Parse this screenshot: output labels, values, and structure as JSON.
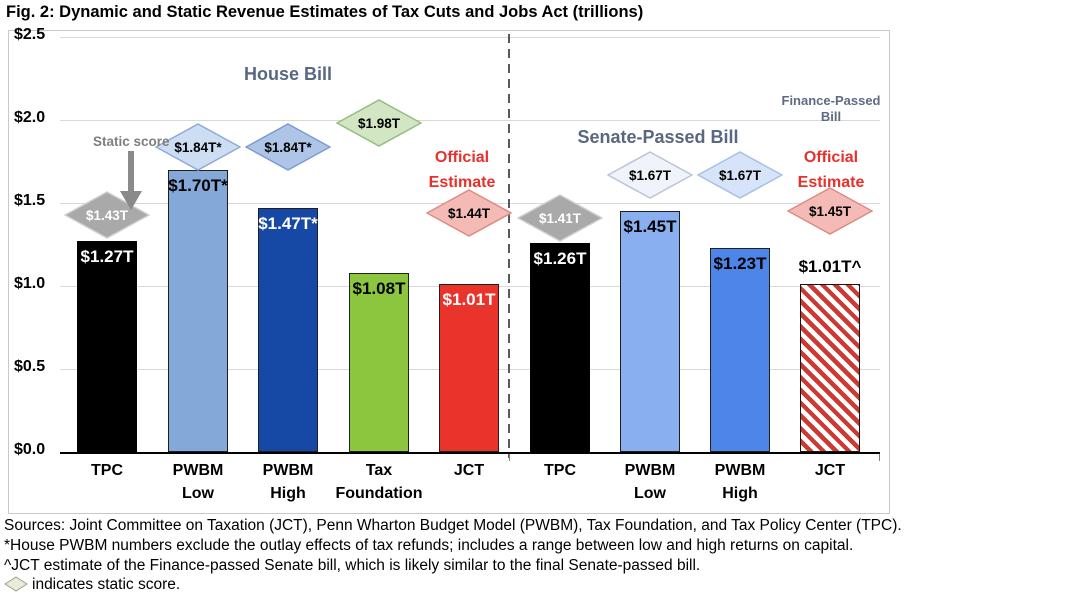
{
  "title": "Fig. 2: Dynamic and Static Revenue Estimates of Tax Cuts and Jobs Act (trillions)",
  "chart_data": {
    "type": "bar",
    "unit": "trillions of dollars",
    "ylim": [
      0,
      2.5
    ],
    "yticks": [
      {
        "value": 2.5,
        "label": "$2.5"
      },
      {
        "value": 2.0,
        "label": "$2.0"
      },
      {
        "value": 1.5,
        "label": "$1.5"
      },
      {
        "value": 1.0,
        "label": "$1.0"
      },
      {
        "value": 0.5,
        "label": "$0.5"
      },
      {
        "value": 0.0,
        "label": "$0.0"
      }
    ],
    "groups": [
      "House Bill",
      "Senate-Passed Bill"
    ],
    "bars": [
      {
        "id": "tpc-house",
        "group": "House Bill",
        "category": [
          "TPC"
        ],
        "value": 1.27,
        "label": "$1.27T",
        "fill": "#000000",
        "label_color": "#ffffff",
        "label_above": false,
        "static": {
          "value": 1.43,
          "label": "$1.43T",
          "fill": "#a9a9a9",
          "stroke": "#cfcfcf",
          "text": "#ffffff"
        }
      },
      {
        "id": "pwbm-low-house",
        "group": "House Bill",
        "category": [
          "PWBM",
          "Low"
        ],
        "value": 1.7,
        "label": "$1.70T*",
        "fill": "#84a9d8",
        "label_color": "#000000",
        "label_above": false,
        "static": {
          "value": 1.84,
          "label": "$1.84T*",
          "fill": "#cdddf2",
          "stroke": "#8fa9d9",
          "text": "#000000"
        }
      },
      {
        "id": "pwbm-high-house",
        "group": "House Bill",
        "category": [
          "PWBM",
          "High"
        ],
        "value": 1.47,
        "label": "$1.47T*",
        "fill": "#1549a5",
        "label_color": "#ffffff",
        "label_above": false,
        "static": {
          "value": 1.84,
          "label": "$1.84T*",
          "fill": "#aec5e8",
          "stroke": "#7d9bd2",
          "text": "#000000"
        }
      },
      {
        "id": "tax-foundation-house",
        "group": "House Bill",
        "category": [
          "Tax",
          "Foundation"
        ],
        "value": 1.08,
        "label": "$1.08T",
        "fill": "#8cc63f",
        "label_color": "#000000",
        "label_above": false,
        "static": {
          "value": 1.98,
          "label": "$1.98T",
          "fill": "#d3e6c3",
          "stroke": "#94bd7e",
          "text": "#000000"
        }
      },
      {
        "id": "jct-house",
        "group": "House Bill",
        "category": [
          "JCT"
        ],
        "value": 1.01,
        "label": "$1.01T",
        "fill": "#ea332a",
        "label_color": "#ffffff",
        "label_above": false,
        "static": {
          "value": 1.44,
          "label": "$1.44T",
          "fill": "#f4bbb6",
          "stroke": "#dd8b82",
          "text": "#000000"
        }
      },
      {
        "id": "tpc-senate",
        "group": "Senate-Passed Bill",
        "category": [
          "TPC"
        ],
        "value": 1.26,
        "label": "$1.26T",
        "fill": "#000000",
        "label_color": "#ffffff",
        "label_above": false,
        "static": {
          "value": 1.41,
          "label": "$1.41T",
          "fill": "#a9a9a9",
          "stroke": "#cfcfcf",
          "text": "#ffffff"
        }
      },
      {
        "id": "pwbm-low-senate",
        "group": "Senate-Passed Bill",
        "category": [
          "PWBM",
          "Low"
        ],
        "value": 1.45,
        "label": "$1.45T",
        "fill": "#8aaff0",
        "label_color": "#000000",
        "label_above": false,
        "static": {
          "value": 1.67,
          "label": "$1.67T",
          "fill": "#f0f3f9",
          "stroke": "#b9c4d6",
          "text": "#000000"
        }
      },
      {
        "id": "pwbm-high-senate",
        "group": "Senate-Passed Bill",
        "category": [
          "PWBM",
          "High"
        ],
        "value": 1.23,
        "label": "$1.23T",
        "fill": "#4d86e8",
        "label_color": "#000000",
        "label_above": false,
        "static": {
          "value": 1.67,
          "label": "$1.67T",
          "fill": "#d6e3f8",
          "stroke": "#a5c0e8",
          "text": "#000000"
        }
      },
      {
        "id": "jct-senate",
        "group": "Senate-Passed Bill",
        "category": [
          "JCT"
        ],
        "value": 1.01,
        "label": "$1.01T^",
        "fill": "hatch",
        "label_color": "#000000",
        "label_above": true,
        "static": {
          "value": 1.45,
          "label": "$1.45T",
          "fill": "#f4bbb6",
          "stroke": "#dd8b82",
          "text": "#000000"
        }
      }
    ],
    "annotations": {
      "static_score_note": "Static score",
      "house_header": "House Bill",
      "senate_header": "Senate-Passed Bill",
      "finance_passed": "Finance-Passed Bill",
      "official_estimate_house": "Official Estimate",
      "official_estimate_senate": "Official Estimate"
    },
    "colors": {
      "hatch_stripe": "#cb3a33",
      "divider": "#595959",
      "group_header_text": "#5a6780",
      "official_estimate_text": "#e8302a",
      "static_note_text": "#7f7f7f",
      "gridline": "#d9d9d9",
      "axis": "#000000",
      "legend_diamond_fill": "#e7edd8",
      "legend_diamond_stroke": "#9aa08a"
    }
  },
  "footnotes": {
    "line1": "Sources: Joint Committee on Taxation (JCT), Penn Wharton Budget Model (PWBM), Tax Foundation, and Tax Policy Center (TPC).",
    "line2": "*House PWBM numbers exclude the outlay effects of tax refunds; includes a range between low and high returns on capital.",
    "line3": "^JCT estimate of the Finance-passed Senate bill, which is likely similar to the final Senate-passed bill.",
    "line4": "indicates static score."
  }
}
